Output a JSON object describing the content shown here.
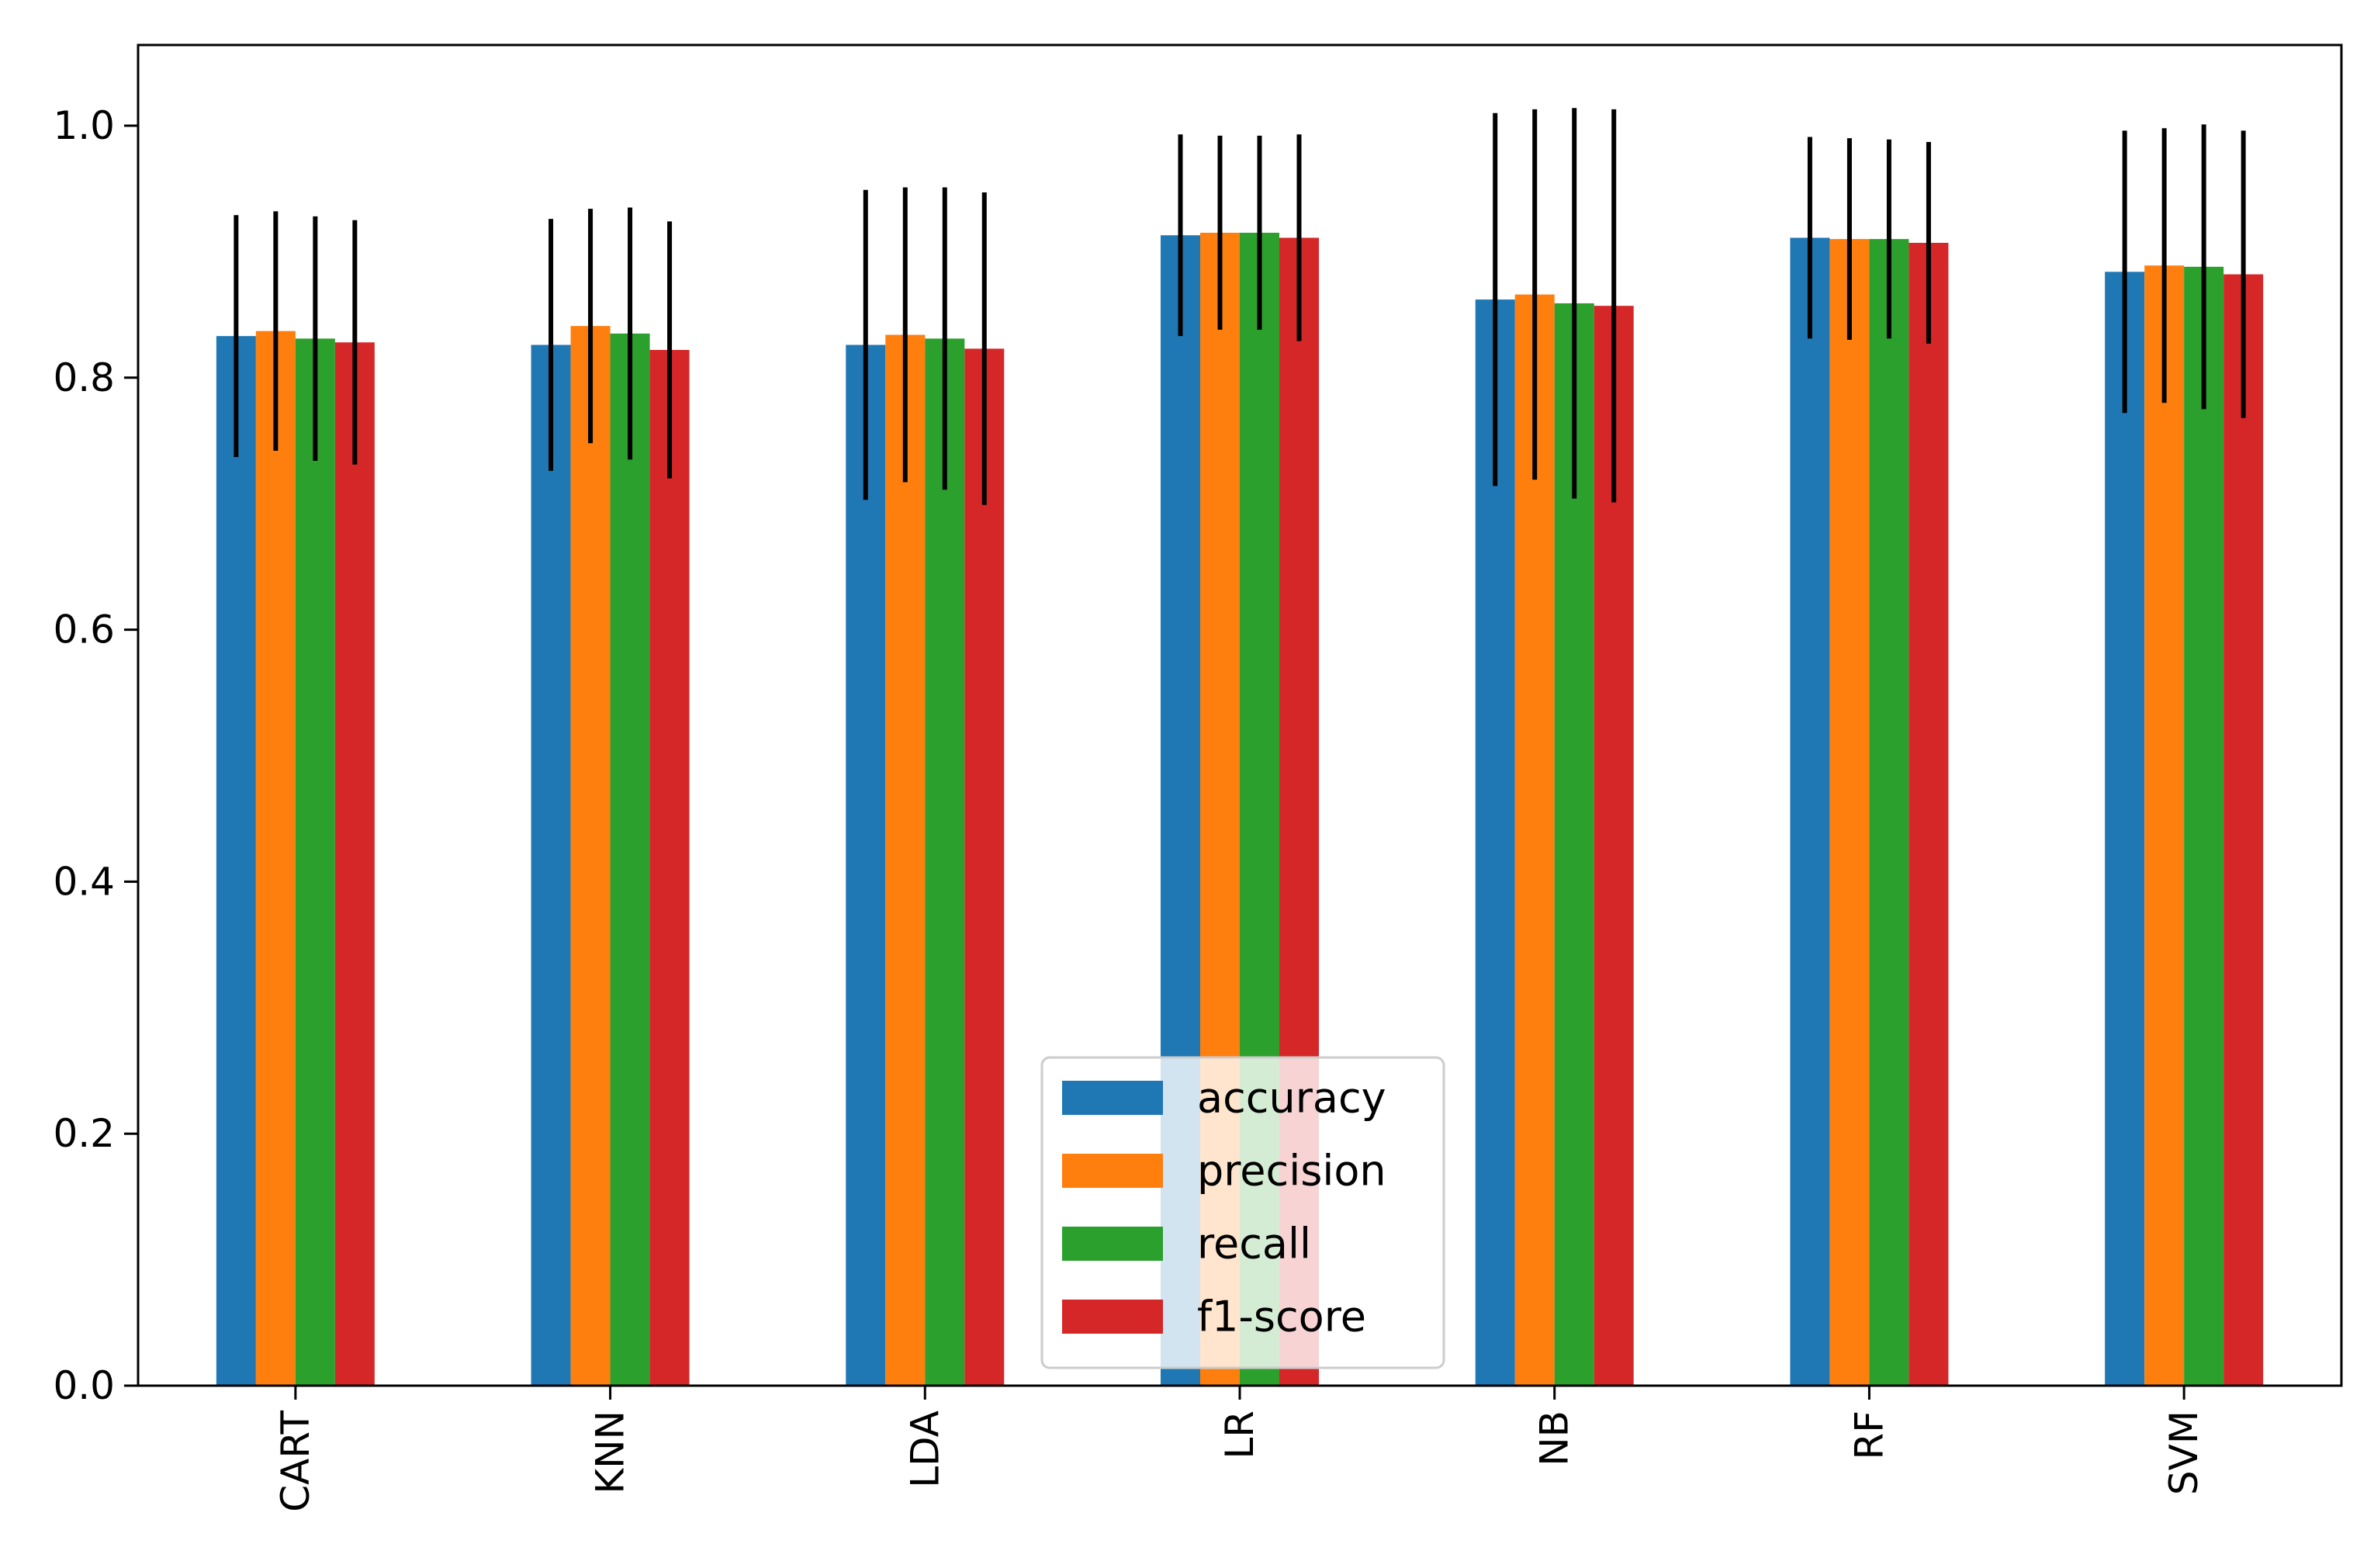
{
  "chart_data": {
    "type": "bar",
    "title": "",
    "xlabel": "",
    "ylabel": "",
    "ylim": [
      0.0,
      1.064
    ],
    "yticks": [
      0.0,
      0.2,
      0.4,
      0.6,
      0.8,
      1.0
    ],
    "ytick_labels": [
      "0.0",
      "0.2",
      "0.4",
      "0.6",
      "0.8",
      "1.0"
    ],
    "grid": false,
    "legend_position": "bottom-center",
    "categories": [
      "CART",
      "KNN",
      "LDA",
      "LR",
      "NB",
      "RF",
      "SVM"
    ],
    "series": [
      {
        "name": "accuracy",
        "color": "#1f77b4",
        "values": [
          0.833,
          0.826,
          0.826,
          0.913,
          0.862,
          0.911,
          0.884
        ],
        "errors": [
          0.096,
          0.1,
          0.123,
          0.08,
          0.148,
          0.08,
          0.112
        ]
      },
      {
        "name": "precision",
        "color": "#ff7f0e",
        "values": [
          0.837,
          0.841,
          0.834,
          0.915,
          0.866,
          0.91,
          0.889
        ],
        "errors": [
          0.095,
          0.093,
          0.117,
          0.077,
          0.147,
          0.08,
          0.109
        ]
      },
      {
        "name": "recall",
        "color": "#2ca02c",
        "values": [
          0.831,
          0.835,
          0.831,
          0.915,
          0.859,
          0.91,
          0.888
        ],
        "errors": [
          0.097,
          0.1,
          0.12,
          0.077,
          0.155,
          0.079,
          0.113
        ]
      },
      {
        "name": "f1-score",
        "color": "#d62728",
        "values": [
          0.828,
          0.822,
          0.823,
          0.911,
          0.857,
          0.907,
          0.882
        ],
        "errors": [
          0.097,
          0.102,
          0.124,
          0.082,
          0.156,
          0.08,
          0.114
        ]
      }
    ]
  }
}
